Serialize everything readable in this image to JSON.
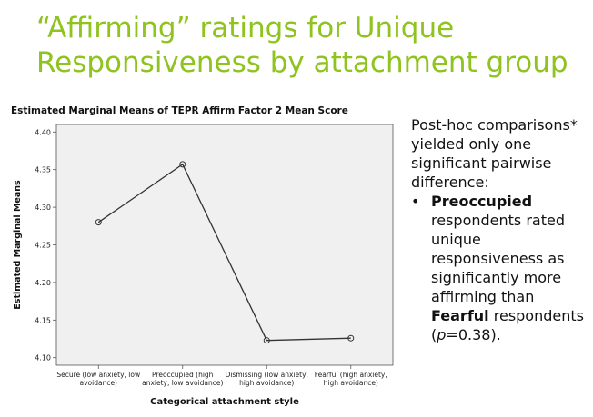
{
  "slide": {
    "title": "“Affirming” ratings for Unique Responsiveness by attachment group"
  },
  "notes": {
    "intro": "Post-hoc comparisons* yielded only one significant pairwise difference:",
    "bullet": "•",
    "word_preoccupied": "Preoccupied",
    "middle_text": " respondents rated unique responsiveness as significantly more affirming than ",
    "word_fearful": "Fearful",
    "respondents": " respondents (",
    "p_letter": "p",
    "p_value": "=0.38)."
  },
  "colors": {
    "title": "#8fc31f",
    "plot_bg": "#f0f0f0",
    "line": "#333333"
  },
  "chart_data": {
    "type": "line",
    "title": "Estimated Marginal Means of TEPR Affirm Factor 2 Mean Score",
    "xlabel": "Categorical attachment style",
    "ylabel": "Estimated Marginal Means",
    "categories": [
      [
        "Secure (low anxiety, low",
        "avoidance)"
      ],
      [
        "Preoccupied (high",
        "anxiety, low avoidance)"
      ],
      [
        "Dismissing (low anxiety,",
        "high avoidance)"
      ],
      [
        "Fearful (high anxiety,",
        "high avoidance)"
      ]
    ],
    "values": [
      4.28,
      4.357,
      4.123,
      4.126
    ],
    "ylim": [
      4.09,
      4.41
    ],
    "yticks": [
      "4.10",
      "4.15",
      "4.20",
      "4.25",
      "4.30",
      "4.35",
      "4.40"
    ],
    "grid": false,
    "legend": "none"
  }
}
